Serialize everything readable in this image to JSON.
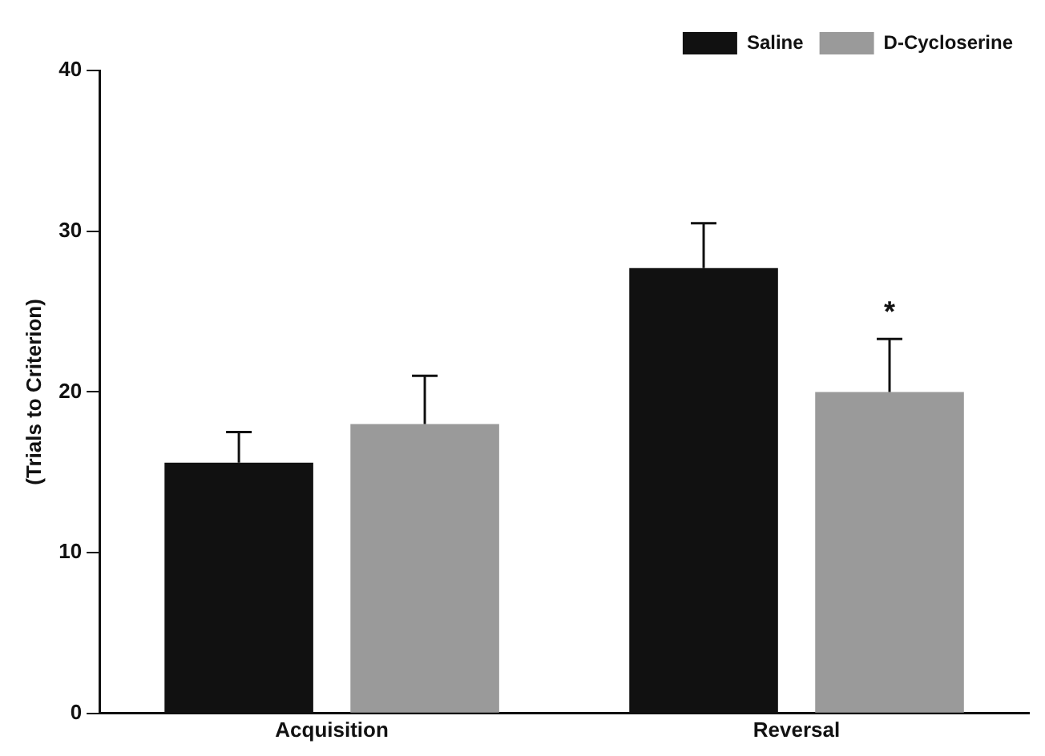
{
  "chart_data": {
    "type": "bar",
    "ylabel": "(Trials to Criterion)",
    "categories": [
      "Acquisition",
      "Reversal"
    ],
    "series": [
      {
        "name": "Saline",
        "color": "#111111",
        "values": [
          15.6,
          27.7
        ],
        "errors": [
          [
            15.6,
            17.5
          ],
          [
            27.7,
            30.5
          ]
        ]
      },
      {
        "name": "D-Cycloserine",
        "color": "#9a9a9a",
        "values": [
          18,
          20
        ],
        "errors": [
          [
            18,
            21
          ],
          [
            20,
            23.3
          ]
        ]
      }
    ],
    "ylim": [
      0,
      40
    ],
    "yticks": [
      0,
      10,
      20,
      30,
      40
    ],
    "grid": false,
    "legend": "top right",
    "annotations": [
      "*"
    ]
  }
}
